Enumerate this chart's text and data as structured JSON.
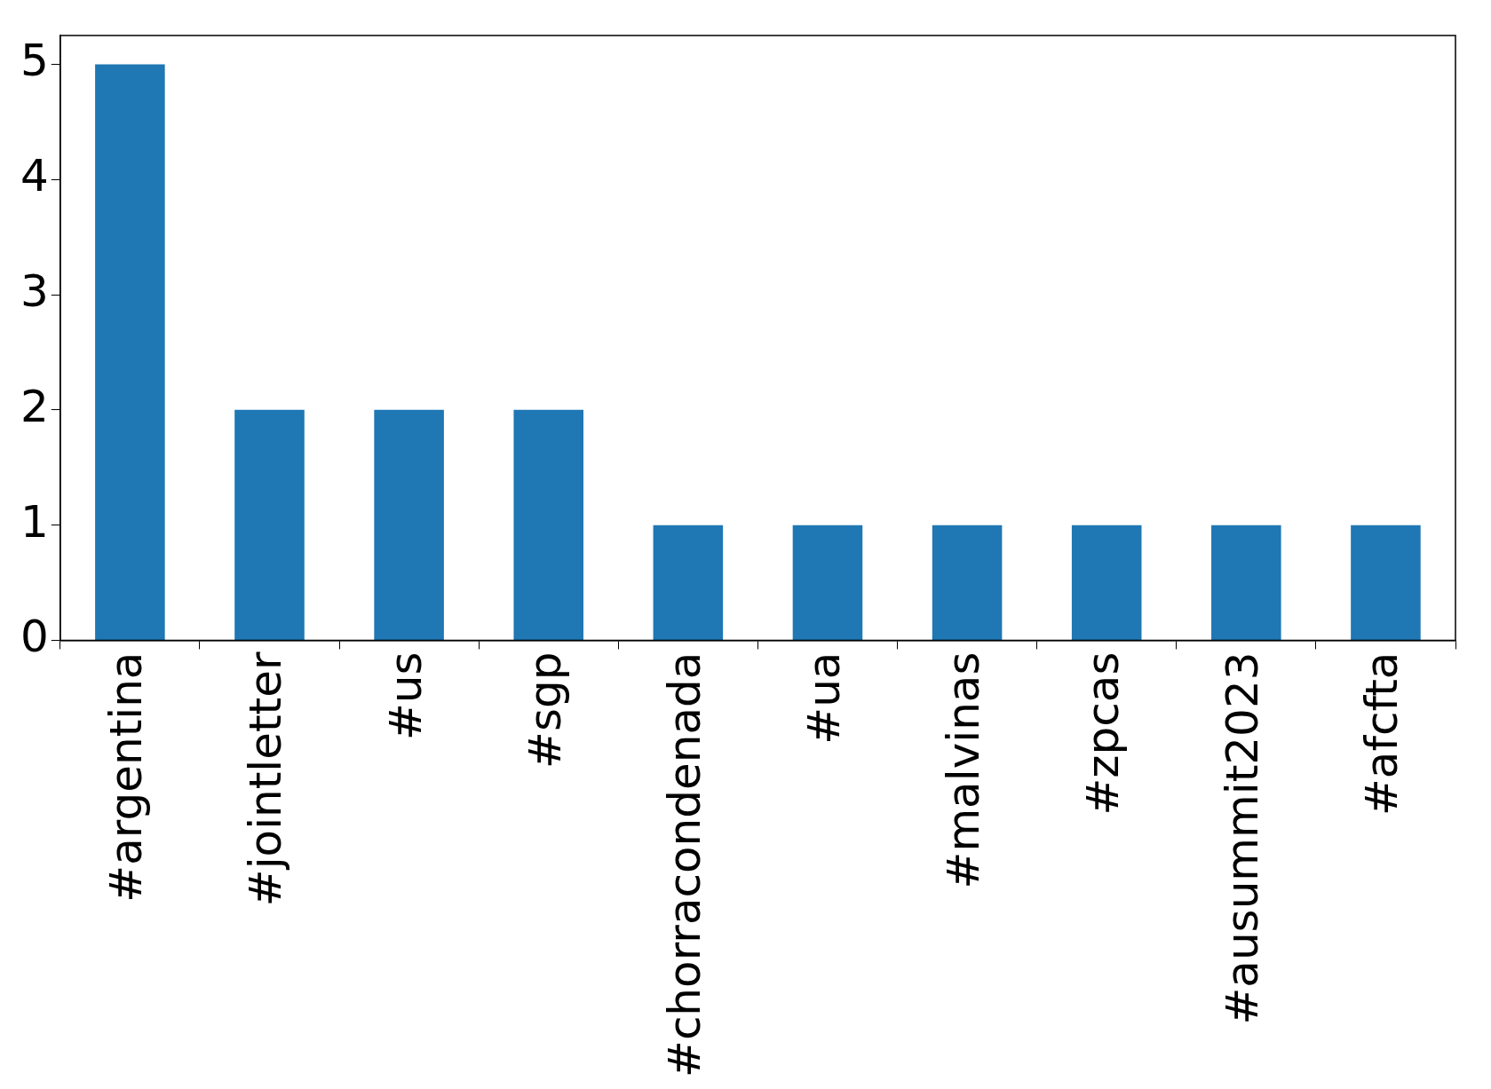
{
  "chart_data": {
    "type": "bar",
    "categories": [
      "#argentina",
      "#jointletter",
      "#us",
      "#sgp",
      "#chorracondenada",
      "#ua",
      "#malvinas",
      "#zpcas",
      "#ausummit2023",
      "#afcfta"
    ],
    "values": [
      5,
      2,
      2,
      2,
      1,
      1,
      1,
      1,
      1,
      1
    ],
    "color": "#1f77b4",
    "ylim": [
      0,
      5.25
    ],
    "yticks": [
      0,
      1,
      2,
      3,
      4,
      5
    ]
  }
}
